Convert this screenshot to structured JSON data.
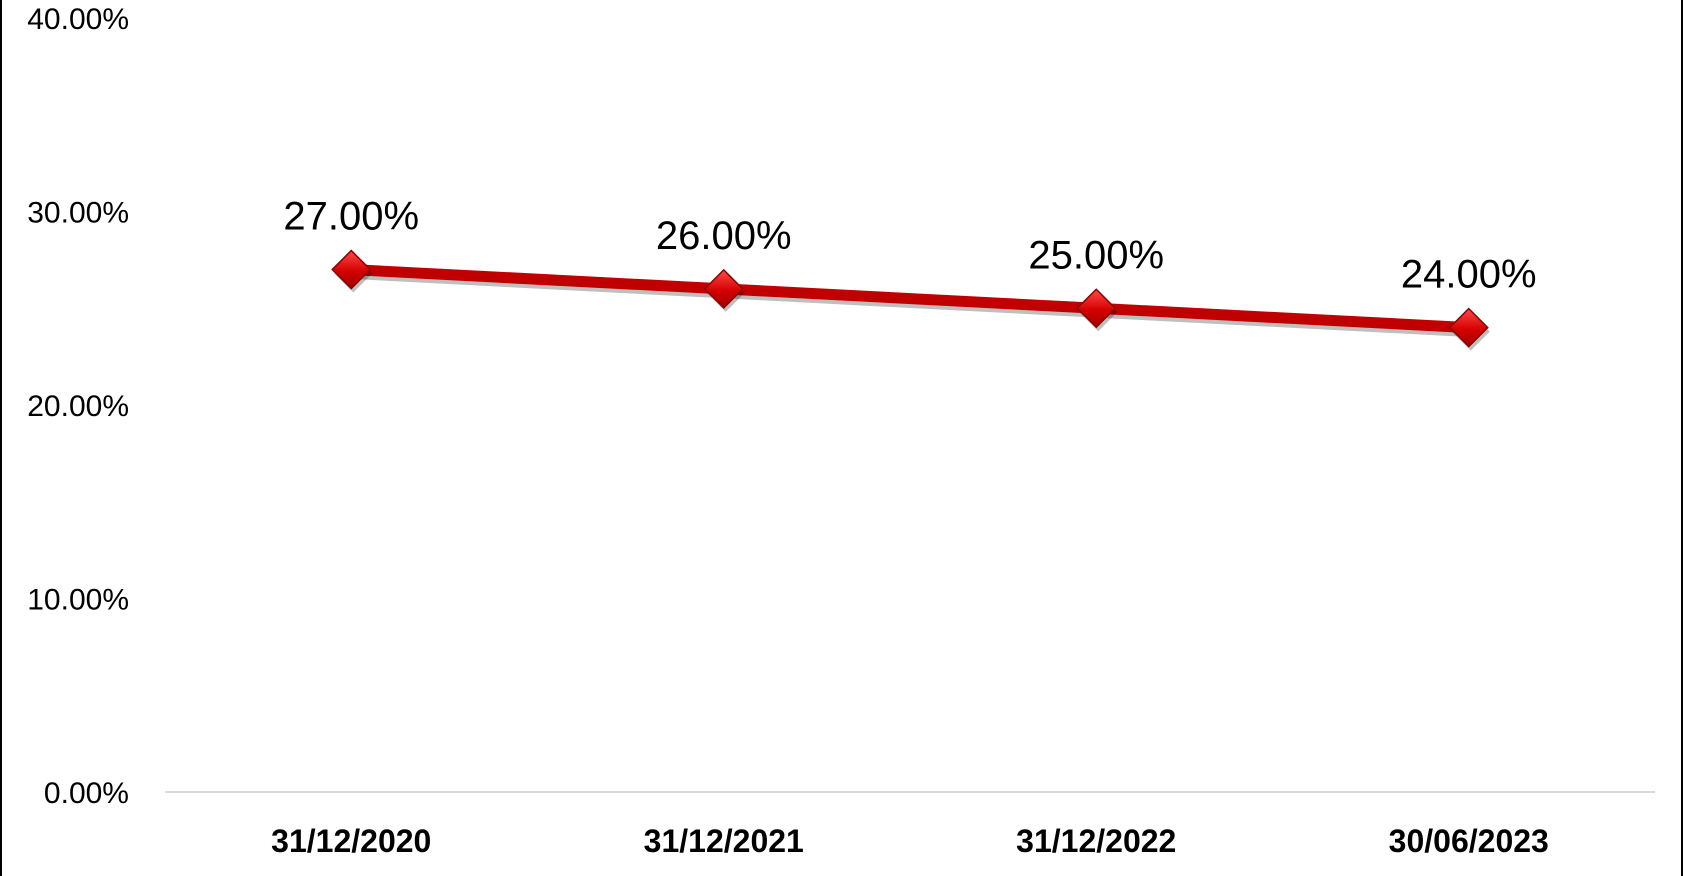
{
  "chart_data": {
    "type": "line",
    "categories": [
      "31/12/2020",
      "31/12/2021",
      "31/12/2022",
      "30/06/2023"
    ],
    "series": [
      {
        "values": [
          27.0,
          26.0,
          25.0,
          24.0
        ],
        "data_labels": [
          "27.00%",
          "26.00%",
          "25.00%",
          "24.00%"
        ]
      }
    ],
    "ylim": [
      0,
      40
    ],
    "yticks": [
      0,
      10,
      20,
      30,
      40
    ],
    "ytick_labels": [
      "0.00%",
      "10.00%",
      "20.00%",
      "30.00%",
      "40.00%"
    ],
    "grid": false,
    "legend": "none",
    "marker": "diamond",
    "colors": {
      "line": "#c00000",
      "marker": "#e00000",
      "marker_edge": "#8b0000",
      "baseline": "#d9d9d9"
    }
  }
}
